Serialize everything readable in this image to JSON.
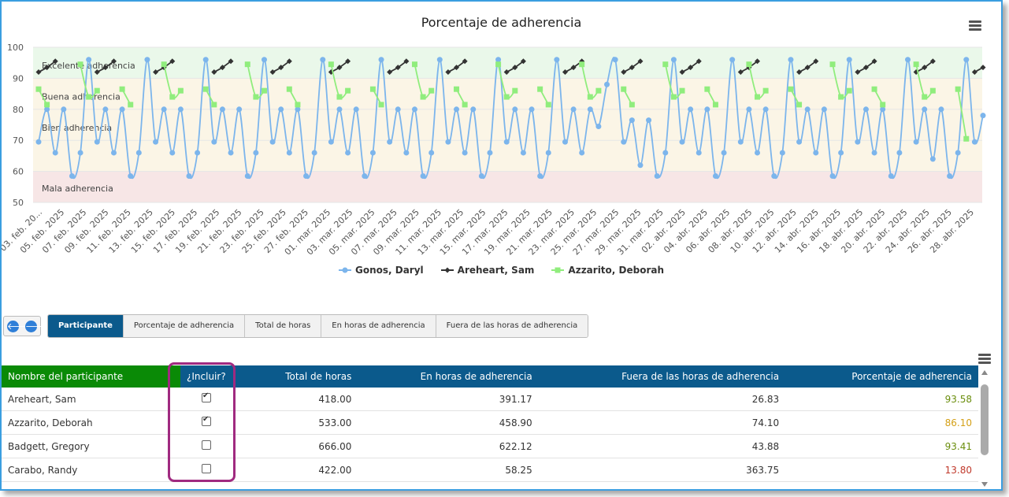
{
  "chart": {
    "title": "Porcentaje de adherencia",
    "menu_icon": "hamburger-menu-icon"
  },
  "chart_data": {
    "type": "line",
    "title": "Porcentaje de adherencia",
    "ylim": [
      50,
      100
    ],
    "y_ticks": [
      50,
      60,
      70,
      80,
      90,
      100
    ],
    "bands": [
      {
        "label": "Excelente adherencia",
        "from": 90,
        "to": 100,
        "color": "#eaf8ea"
      },
      {
        "label": "Buena adherencia",
        "from": 80,
        "to": 90,
        "color": "#fbf5e6"
      },
      {
        "label": "Bien adherencia",
        "from": 60,
        "to": 80,
        "color": "#fbf5e6"
      },
      {
        "label": "Mala adherencia",
        "from": 50,
        "to": 60,
        "color": "#f7e6e6"
      }
    ],
    "x_labels": [
      "03. feb. 20...",
      "05. feb. 2025",
      "07. feb. 2025",
      "09. feb. 2025",
      "11. feb. 2025",
      "13. feb. 2025",
      "15. feb. 2025",
      "17. feb. 2025",
      "19. feb. 2025",
      "21. feb. 2025",
      "23. feb. 2025",
      "25. feb. 2025",
      "27. feb. 2025",
      "01. mar. 2025",
      "03. mar. 2025",
      "05. mar. 2025",
      "07. mar. 2025",
      "09. mar. 2025",
      "11. mar. 2025",
      "13. mar. 2025",
      "15. mar. 2025",
      "17. mar. 2025",
      "19. mar. 2025",
      "21. mar. 2025",
      "23. mar. 2025",
      "25. mar. 2025",
      "27. mar. 2025",
      "29. mar. 2025",
      "31. mar. 2025",
      "02. abr. 2025",
      "04. abr. 2025",
      "06. abr. 2025",
      "08. abr. 2025",
      "10. abr. 2025",
      "12. abr. 2025",
      "14. abr. 2025",
      "16. abr. 2025",
      "18. abr. 2025",
      "20. abr. 2025",
      "22. abr. 2025",
      "24. abr. 2025",
      "26. abr. 2025",
      "28. abr. 2025"
    ],
    "series": [
      {
        "name": "Gonos, Daryl",
        "color": "#7cb5ec",
        "marker": "circle",
        "values": [
          69.5,
          80,
          66,
          80,
          58.5,
          66,
          96,
          69.5,
          80,
          66,
          80,
          58.5,
          66,
          96,
          69.5,
          80,
          66,
          80,
          58.5,
          66,
          96,
          69.5,
          80,
          66,
          80,
          58.5,
          66,
          96,
          69.5,
          80,
          66,
          80,
          58.5,
          66,
          96,
          69.5,
          80,
          66,
          80,
          58.5,
          66,
          96,
          69.5,
          80,
          66,
          80,
          58.5,
          66,
          96,
          69.5,
          80,
          66,
          80,
          58.5,
          66,
          96,
          69.5,
          80,
          66,
          80,
          58.5,
          66,
          96,
          69.5,
          80,
          66,
          80,
          74.5,
          88,
          96,
          69.5,
          76.5,
          62,
          76.5,
          58.5,
          66,
          96,
          69.5,
          80,
          66,
          80,
          58.5,
          66,
          96,
          69.5,
          80,
          66,
          80,
          58.5,
          66,
          96,
          69.5,
          80,
          66,
          80,
          58.5,
          66,
          96,
          69.5,
          80,
          66,
          80,
          58.5,
          66,
          96,
          69.5,
          80,
          64,
          80,
          58.5,
          66,
          96,
          69.5,
          78
        ]
      },
      {
        "name": "Areheart, Sam",
        "color": "#333333",
        "marker": "diamond",
        "values": [
          92,
          93.5,
          95.5,
          null,
          null,
          null,
          null,
          92,
          93.5,
          95.5,
          null,
          null,
          null,
          null,
          92,
          93.5,
          95.5,
          null,
          null,
          null,
          null,
          92,
          93.5,
          95.5,
          null,
          null,
          null,
          null,
          92,
          93.5,
          95.5,
          null,
          null,
          null,
          null,
          92,
          93.5,
          95.5,
          null,
          null,
          null,
          null,
          92,
          93.5,
          95.5,
          null,
          null,
          null,
          null,
          92,
          93.5,
          95.5,
          null,
          null,
          null,
          null,
          92,
          93.5,
          95.5,
          null,
          null,
          null,
          null,
          92,
          93.5,
          95.5,
          null,
          null,
          null,
          null,
          92,
          93.5,
          95.5,
          null,
          null,
          null,
          null,
          92,
          93.5,
          95.5,
          null,
          null,
          null,
          null,
          92,
          93.5,
          95.5,
          null,
          null,
          null,
          null,
          92,
          93.5,
          95.5,
          null,
          null,
          null,
          null,
          92,
          93.5,
          95.5,
          null,
          null,
          null,
          null,
          92,
          93.5,
          95.5,
          null,
          null,
          null,
          null,
          92,
          93.5,
          null,
          null
        ]
      },
      {
        "name": "Azzarito, Deborah",
        "color": "#90ed7d",
        "marker": "square",
        "values": [
          86.5,
          81.5,
          null,
          null,
          null,
          94.5,
          84,
          86,
          null,
          null,
          86.5,
          81.5,
          null,
          null,
          null,
          94.5,
          84,
          86,
          null,
          null,
          86.5,
          81.5,
          null,
          null,
          null,
          94.5,
          84,
          86,
          null,
          null,
          86.5,
          81.5,
          null,
          null,
          null,
          94.5,
          84,
          86,
          null,
          null,
          86.5,
          81.5,
          null,
          null,
          null,
          94.5,
          84,
          86,
          null,
          null,
          86.5,
          81.5,
          null,
          null,
          null,
          94.5,
          84,
          86,
          null,
          null,
          86.5,
          81.5,
          null,
          null,
          null,
          94.5,
          84,
          86,
          null,
          null,
          86.5,
          81.5,
          null,
          null,
          null,
          94.5,
          84,
          86,
          null,
          null,
          86.5,
          81.5,
          null,
          null,
          null,
          94.5,
          84,
          86,
          null,
          null,
          86.5,
          81.5,
          null,
          null,
          null,
          94.5,
          84,
          86,
          null,
          null,
          86.5,
          81.5,
          null,
          null,
          null,
          94.5,
          84,
          86,
          null,
          null,
          86.5,
          70.5,
          null,
          null
        ]
      }
    ]
  },
  "nav": {
    "prev_icon": "arrow-left-icon",
    "next_icon": "arrow-right-icon",
    "prev_glyph": "🡐",
    "next_glyph": "🡒"
  },
  "tabs": [
    {
      "label": "Participante",
      "active": true
    },
    {
      "label": "Porcentaje de adherencia"
    },
    {
      "label": "Total de horas"
    },
    {
      "label": "En horas de adherencia"
    },
    {
      "label": "Fuera de las horas de adherencia"
    }
  ],
  "table": {
    "headers": [
      "Nombre del participante",
      "¿Incluir?",
      "Total de horas",
      "En horas de adherencia",
      "Fuera de las horas de adherencia",
      "Porcentaje de adherencia"
    ],
    "rows": [
      {
        "name": "Areheart, Sam",
        "include": true,
        "total": "418.00",
        "in": "391.17",
        "out": "26.83",
        "pct": "93.58",
        "pct_color": "#6b8e0e"
      },
      {
        "name": "Azzarito, Deborah",
        "include": true,
        "total": "533.00",
        "in": "458.90",
        "out": "74.10",
        "pct": "86.10",
        "pct_color": "#d4a017"
      },
      {
        "name": "Badgett, Gregory",
        "include": false,
        "total": "666.00",
        "in": "622.12",
        "out": "43.88",
        "pct": "93.41",
        "pct_color": "#6b8e0e"
      },
      {
        "name": "Carabo, Randy",
        "include": false,
        "total": "422.00",
        "in": "58.25",
        "out": "363.75",
        "pct": "13.80",
        "pct_color": "#c0392b"
      }
    ]
  }
}
